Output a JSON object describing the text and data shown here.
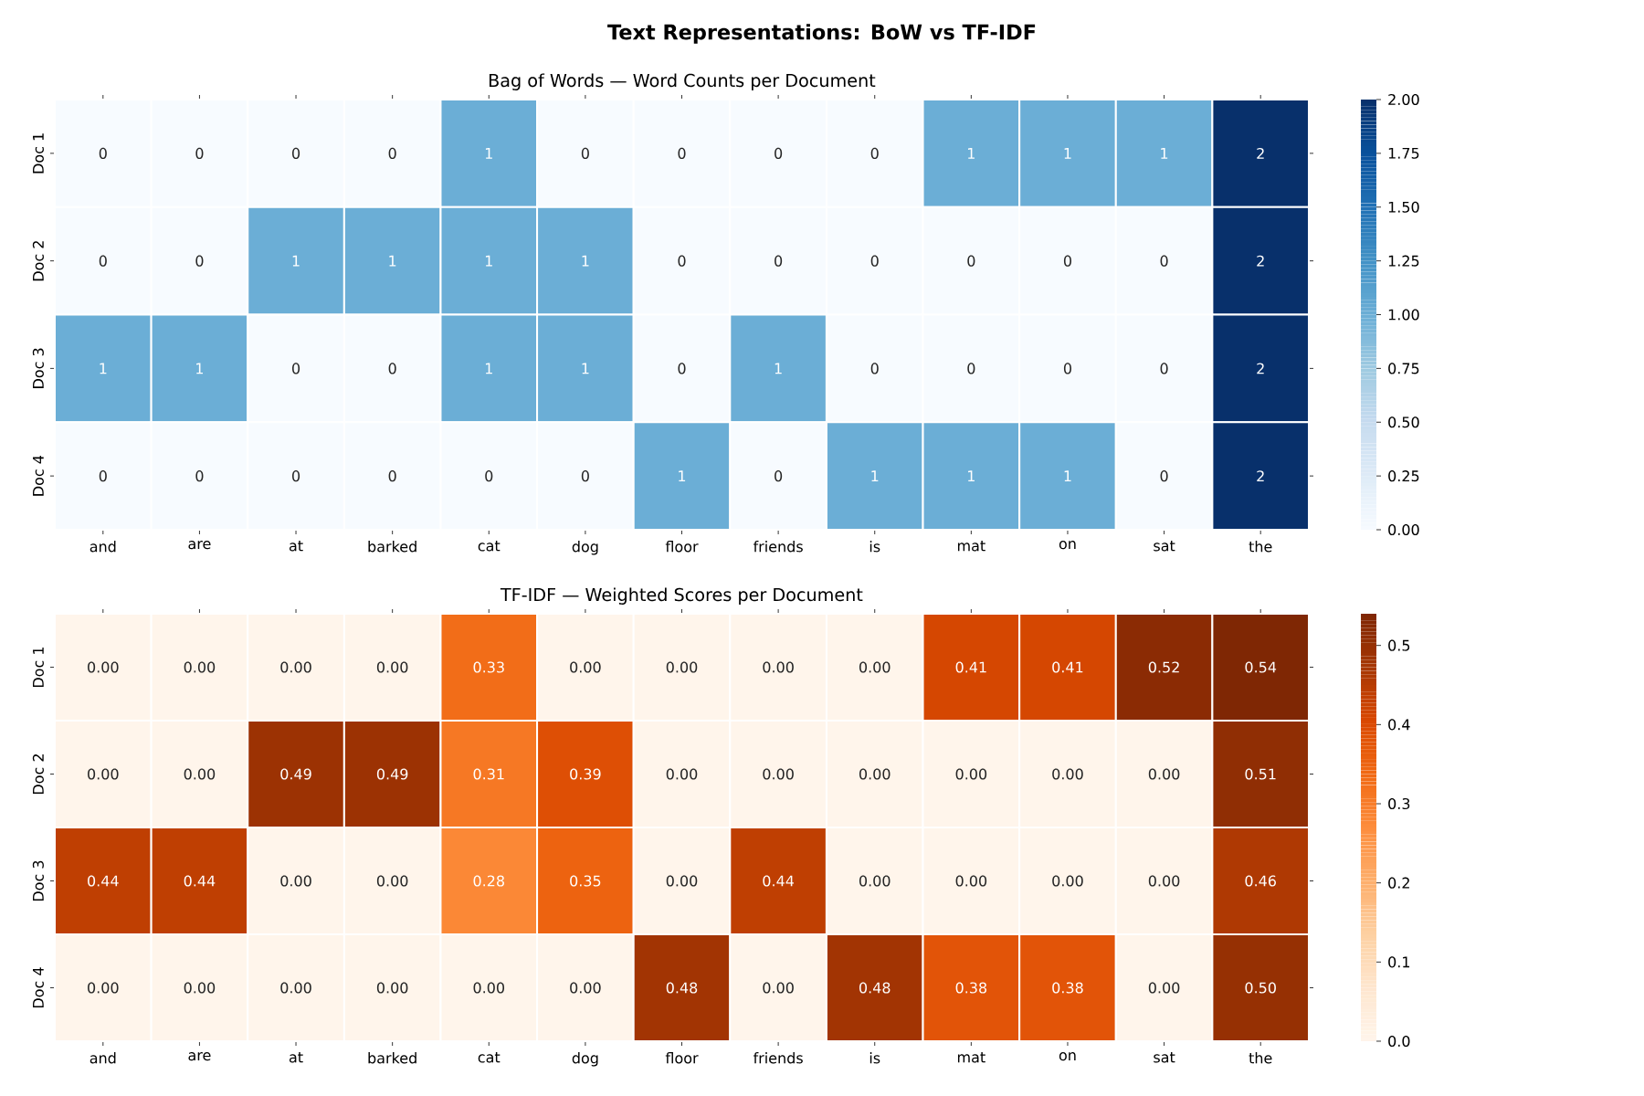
{
  "chart_data": [
    {
      "type": "heatmap",
      "title": "Text Representations: BoW vs TF-IDF",
      "subtitle": "Bag of Words — Word Counts per Document",
      "categories": [
        "and",
        "are",
        "at",
        "barked",
        "cat",
        "dog",
        "floor",
        "friends",
        "is",
        "mat",
        "on",
        "sat",
        "the"
      ],
      "y_categories": [
        "Doc 1",
        "Doc 2",
        "Doc 3",
        "Doc 4"
      ],
      "cells": [
        [
          0,
          0,
          0,
          0,
          1,
          0,
          0,
          0,
          0,
          1,
          1,
          1,
          2
        ],
        [
          0,
          0,
          1,
          1,
          1,
          1,
          0,
          0,
          0,
          0,
          0,
          0,
          2
        ],
        [
          1,
          1,
          0,
          0,
          1,
          1,
          0,
          1,
          0,
          0,
          0,
          0,
          2
        ],
        [
          0,
          0,
          0,
          0,
          0,
          0,
          1,
          0,
          1,
          1,
          1,
          0,
          2
        ]
      ],
      "data_labels": true,
      "clim": [
        0,
        2
      ],
      "cticks": [
        {
          "value": 0,
          "label": "0.00"
        },
        0.25,
        {
          "value": 0.5,
          "label": "0.50"
        },
        0.75,
        {
          "value": 1,
          "label": "1.00"
        },
        1.25,
        {
          "value": 1.5,
          "label": "1.50"
        },
        1.75,
        {
          "value": 2,
          "label": "2.00"
        }
      ]
    },
    {
      "type": "heatmap",
      "subtitle": "TF-IDF — Weighted Scores per Document",
      "categories": [
        "and",
        "are",
        "at",
        "barked",
        "cat",
        "dog",
        "floor",
        "friends",
        "is",
        "mat",
        "on",
        "sat",
        "the"
      ],
      "y_categories": [
        "Doc 1",
        "Doc 2",
        "Doc 3",
        "Doc 4"
      ],
      "cells": [
        [
          0,
          0,
          0,
          0,
          0.33,
          0,
          0,
          0,
          0,
          0.41,
          0.41,
          0.52,
          0.54
        ],
        [
          0,
          0,
          0.49,
          0.49,
          0.31,
          0.39,
          0,
          0,
          0,
          0,
          0,
          0,
          0.51
        ],
        [
          0.44,
          0.44,
          0,
          0,
          0.28,
          0.35,
          0,
          0.44,
          0,
          0,
          0,
          0,
          0.46
        ],
        [
          0,
          0,
          0,
          0,
          0,
          0,
          0.48,
          0,
          0.48,
          0.38,
          0.38,
          0,
          0.5
        ]
      ],
      "cell_labels": [
        [
          "0.00",
          "0.00",
          "0.00",
          "0.00",
          "0.33",
          "0.00",
          "0.00",
          "0.00",
          "0.00",
          "0.41",
          "0.41",
          "0.52",
          "0.54"
        ],
        [
          "0.00",
          "0.00",
          "0.49",
          "0.49",
          "0.31",
          "0.39",
          "0.00",
          "0.00",
          "0.00",
          "0.00",
          "0.00",
          "0.00",
          "0.51"
        ],
        [
          "0.44",
          "0.44",
          "0.00",
          "0.00",
          "0.28",
          "0.35",
          "0.00",
          "0.44",
          "0.00",
          "0.00",
          "0.00",
          "0.00",
          "0.46"
        ],
        [
          "0.00",
          "0.00",
          "0.00",
          "0.00",
          "0.00",
          "0.00",
          "0.48",
          "0.00",
          "0.48",
          "0.38",
          "0.38",
          "0.00",
          "0.50"
        ]
      ],
      "clim": [
        0,
        0.54
      ],
      "cticks": [
        {
          "value": 0,
          "label": "0.0"
        },
        0.1,
        0.2,
        0.3,
        0.4,
        0.5
      ]
    }
  ]
}
